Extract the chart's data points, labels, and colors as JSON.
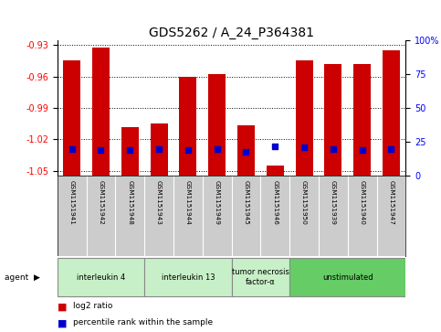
{
  "title": "GDS5262 / A_24_P364381",
  "samples": [
    "GSM1151941",
    "GSM1151942",
    "GSM1151948",
    "GSM1151943",
    "GSM1151944",
    "GSM1151949",
    "GSM1151945",
    "GSM1151946",
    "GSM1151950",
    "GSM1151939",
    "GSM1151940",
    "GSM1151947"
  ],
  "log2_ratios": [
    -0.945,
    -0.932,
    -1.008,
    -1.005,
    -0.96,
    -0.958,
    -1.007,
    -1.045,
    -0.945,
    -0.948,
    -0.948,
    -0.935
  ],
  "percentile_ranks": [
    20,
    19,
    19,
    20,
    19,
    20,
    18,
    22,
    21,
    20,
    19,
    20
  ],
  "agents": [
    {
      "label": "interleukin 4",
      "color": "#c8f0c8",
      "samples": [
        "GSM1151941",
        "GSM1151942",
        "GSM1151948"
      ]
    },
    {
      "label": "interleukin 13",
      "color": "#c8f0c8",
      "samples": [
        "GSM1151943",
        "GSM1151944",
        "GSM1151949"
      ]
    },
    {
      "label": "tumor necrosis\nfactor-α",
      "color": "#c8f0c8",
      "samples": [
        "GSM1151945",
        "GSM1151946"
      ]
    },
    {
      "label": "unstimulated",
      "color": "#66cc66",
      "samples": [
        "GSM1151950",
        "GSM1151939",
        "GSM1151940",
        "GSM1151947"
      ]
    }
  ],
  "ylim_left": [
    -1.055,
    -0.925
  ],
  "yticks_left": [
    -1.05,
    -1.02,
    -0.99,
    -0.96,
    -0.93
  ],
  "yticks_right": [
    0,
    25,
    50,
    75,
    100
  ],
  "bar_color": "#cc0000",
  "dot_color": "#0000cc",
  "bg_color": "#ffffff",
  "grid_color": "#000000",
  "title_fontsize": 10,
  "tick_fontsize": 7,
  "label_fontsize": 7
}
